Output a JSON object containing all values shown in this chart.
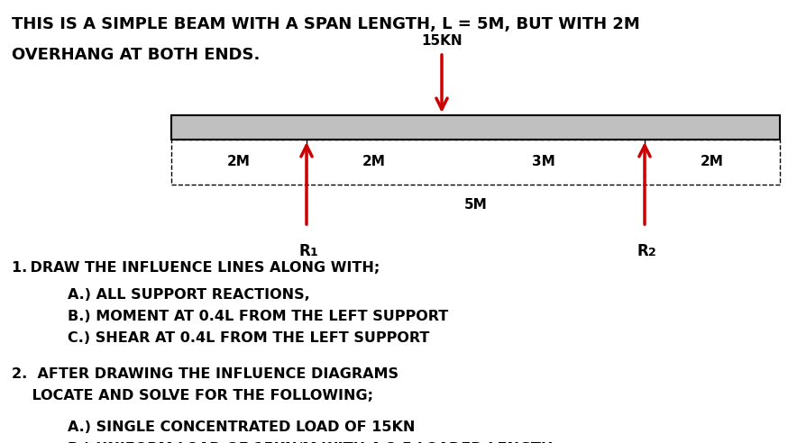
{
  "title_line1": "THIS IS A SIMPLE BEAM WITH A SPAN LENGTH, L = 5M, BUT WITH 2M",
  "title_line2": "OVERHANG AT BOTH ENDS.",
  "load_label": "15KN",
  "span_label": "5M",
  "r1_label": "R",
  "r2_label": "R",
  "beam_color": "#c0c0c0",
  "beam_edge_color": "#000000",
  "arrow_color": "#cc0000",
  "text_color": "#000000",
  "bg_color": "#ffffff",
  "title_fontsize": 13,
  "body_fontsize": 11.5,
  "dim_fontsize": 11
}
